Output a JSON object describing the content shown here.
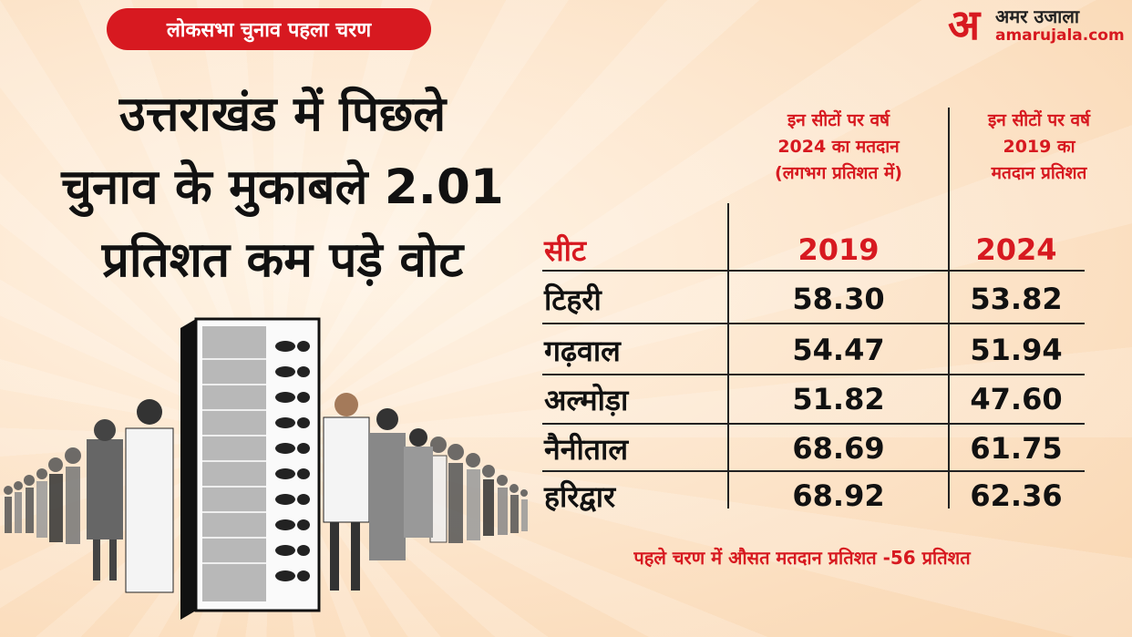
{
  "badge": "लोकसभा चुनाव पहला चरण",
  "headline": [
    "उत्तराखंड में पिछले",
    "चुनाव के मुकाबले 2.01",
    "प्रतिशत कम पड़े वोट"
  ],
  "logo": {
    "mark": "अ",
    "name": "अमर उजाला",
    "url": "amarujala.com"
  },
  "columns": {
    "c1_desc": [
      "इन सीटों पर वर्ष",
      "2024 का मतदान",
      "(लगभग प्रतिशत में)"
    ],
    "c2_desc": [
      "इन सीटों पर वर्ष",
      "2019 का",
      "मतदान प्रतिशत"
    ]
  },
  "footer": "पहले चरण में औसत मतदान प्रतिशत -56 प्रतिशत",
  "chart_data": {
    "type": "table",
    "header": [
      "सीट",
      "2019",
      "2024"
    ],
    "rows": [
      {
        "seat": "टिहरी",
        "v2019": "58.30",
        "v2024": "53.82"
      },
      {
        "seat": "गढ़वाल",
        "v2019": "54.47",
        "v2024": "51.94"
      },
      {
        "seat": "अल्मोड़ा",
        "v2019": "51.82",
        "v2024": "47.60"
      },
      {
        "seat": "नैनीताल",
        "v2019": "68.69",
        "v2024": "61.75"
      },
      {
        "seat": "हरिद्वार",
        "v2019": "68.92",
        "v2024": "62.36"
      }
    ]
  },
  "colors": {
    "accent": "#d71920",
    "text": "#111111",
    "background": "#fde7cf"
  },
  "illustration": {
    "evm": "voting-machine-icon",
    "people": "voters-queue-icon"
  }
}
